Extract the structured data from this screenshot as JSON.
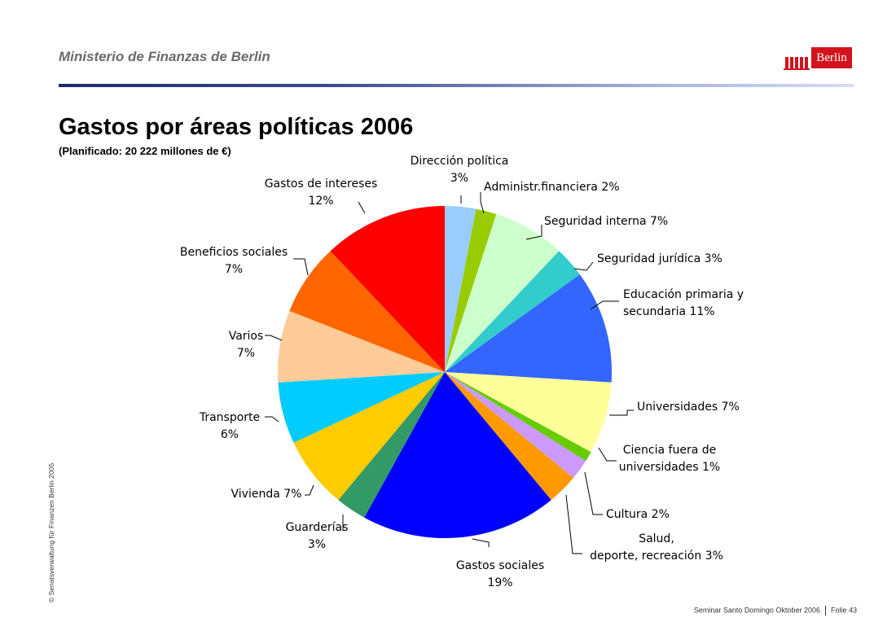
{
  "header": {
    "title": "Ministerio de Finanzas de Berlin",
    "logo_text": "Berlin"
  },
  "slide": {
    "title": "Gastos por áreas políticas 2006",
    "subtitle": "(Planificado:  20 222 millones de €)"
  },
  "side_text": "© Senatsverwaltung für Finanzen Berlin 2005",
  "footer": {
    "seminar": "Seminar Santo Domingo Oktober 2006",
    "page": "Folie 43"
  },
  "chart_data": {
    "type": "pie",
    "title": "Gastos por áreas políticas 2006",
    "subtitle": "(Planificado:  20 222 millones de €)",
    "unit": "%",
    "slices": [
      {
        "label_lines": [
          "Dirección política",
          "3%"
        ],
        "value": 3,
        "color": "#99ccff"
      },
      {
        "label_lines": [
          "Administr.financiera 2%"
        ],
        "value": 2,
        "color": "#99cc00"
      },
      {
        "label_lines": [
          "Seguridad interna 7%"
        ],
        "value": 7,
        "color": "#ccffcc"
      },
      {
        "label_lines": [
          "Seguridad jurídica 3%"
        ],
        "value": 3,
        "color": "#33cccc"
      },
      {
        "label_lines": [
          "Educación primaria y",
          "secundaria 11%"
        ],
        "value": 11,
        "color": "#3366ff"
      },
      {
        "label_lines": [
          "Universidades 7%"
        ],
        "value": 7,
        "color": "#ffff99"
      },
      {
        "label_lines": [
          "Ciencia fuera de",
          "universidades 1%"
        ],
        "value": 1,
        "color": "#66cc00"
      },
      {
        "label_lines": [
          "Cultura 2%"
        ],
        "value": 2,
        "color": "#cc99ff"
      },
      {
        "label_lines": [
          "Salud,",
          "deporte, recreación 3%"
        ],
        "value": 3,
        "color": "#ff9900"
      },
      {
        "label_lines": [
          "Gastos sociales",
          "19%"
        ],
        "value": 19,
        "color": "#0000ff"
      },
      {
        "label_lines": [
          "Guarderías",
          "3%"
        ],
        "value": 3,
        "color": "#339966"
      },
      {
        "label_lines": [
          "Vivienda 7%"
        ],
        "value": 7,
        "color": "#ffcc00"
      },
      {
        "label_lines": [
          "Transporte",
          "6%"
        ],
        "value": 6,
        "color": "#00ccff"
      },
      {
        "label_lines": [
          "Varios",
          "7%"
        ],
        "value": 7,
        "color": "#ffcc99"
      },
      {
        "label_lines": [
          "Beneficios sociales",
          "7%"
        ],
        "value": 7,
        "color": "#ff6600"
      },
      {
        "label_lines": [
          "Gastos de intereses",
          "12%"
        ],
        "value": 12,
        "color": "#ff0000"
      }
    ]
  }
}
